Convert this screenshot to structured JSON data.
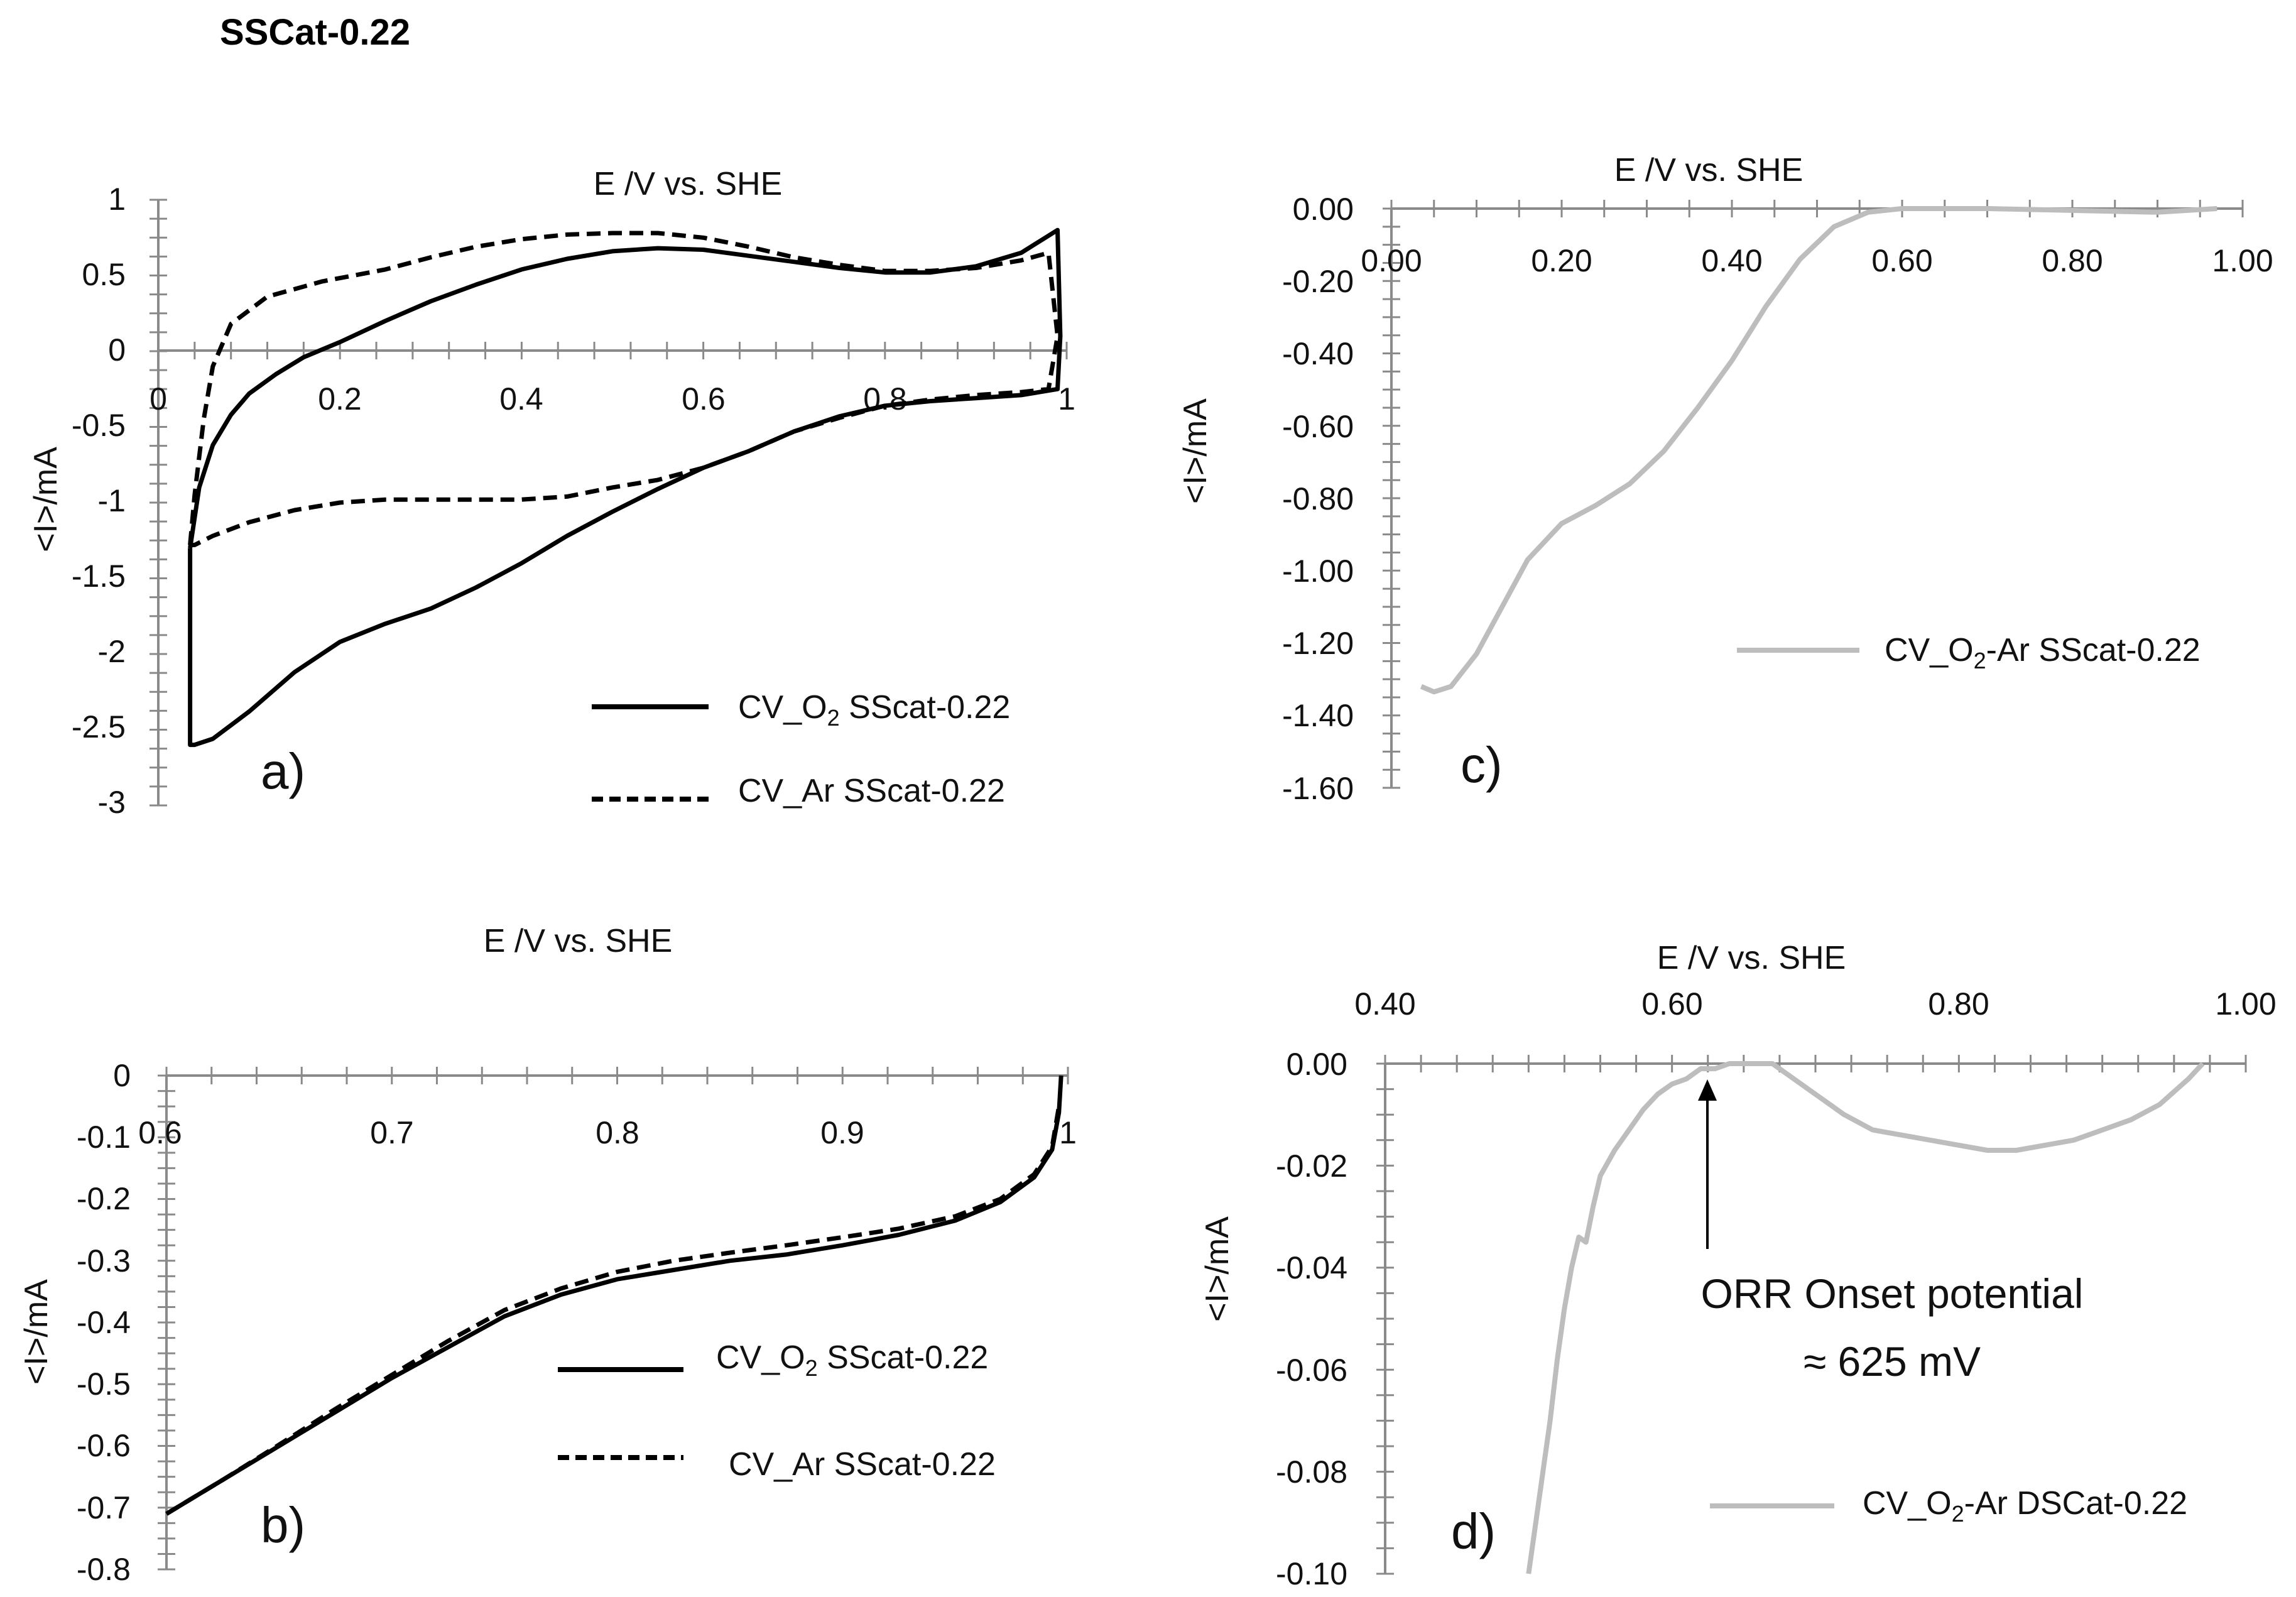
{
  "figure_title": "SSCat-0.22",
  "chart_data": [
    {
      "panel": "a",
      "type": "line",
      "panel_label": "a)",
      "xlabel": "E /V vs. SHE",
      "ylabel": "<I>/mA",
      "xlim": [
        0,
        1
      ],
      "ylim": [
        -3,
        1
      ],
      "x_ticks": [
        0,
        0.2,
        0.4,
        0.6,
        0.8,
        1
      ],
      "x_tick_labels": [
        "0",
        "0.2",
        "0.4",
        "0.6",
        "0.8",
        "1"
      ],
      "y_ticks": [
        1,
        0.5,
        0,
        -0.5,
        -1,
        -1.5,
        -2,
        -2.5,
        -3
      ],
      "y_tick_labels": [
        "1",
        "0.5",
        "0",
        "-0.5",
        "-1",
        "-1.5",
        "-2",
        "-2.5",
        "-3"
      ],
      "series": [
        {
          "name": "CV_O2 SScat-0.22",
          "legend_main": "CV_O",
          "legend_sub": "2",
          "legend_rest": " SScat-0.22",
          "style": "solid",
          "color": "#000000",
          "points": [
            [
              0.035,
              -1.3
            ],
            [
              0.045,
              -0.9
            ],
            [
              0.06,
              -0.62
            ],
            [
              0.08,
              -0.42
            ],
            [
              0.1,
              -0.28
            ],
            [
              0.13,
              -0.15
            ],
            [
              0.16,
              -0.04
            ],
            [
              0.2,
              0.06
            ],
            [
              0.25,
              0.2
            ],
            [
              0.3,
              0.33
            ],
            [
              0.35,
              0.44
            ],
            [
              0.4,
              0.54
            ],
            [
              0.45,
              0.61
            ],
            [
              0.5,
              0.66
            ],
            [
              0.55,
              0.68
            ],
            [
              0.6,
              0.67
            ],
            [
              0.65,
              0.63
            ],
            [
              0.7,
              0.59
            ],
            [
              0.75,
              0.55
            ],
            [
              0.8,
              0.52
            ],
            [
              0.85,
              0.52
            ],
            [
              0.9,
              0.56
            ],
            [
              0.95,
              0.65
            ],
            [
              0.99,
              0.8
            ],
            [
              0.993,
              0.1
            ],
            [
              0.99,
              -0.25
            ],
            [
              0.95,
              -0.29
            ],
            [
              0.9,
              -0.31
            ],
            [
              0.85,
              -0.33
            ],
            [
              0.8,
              -0.36
            ],
            [
              0.75,
              -0.43
            ],
            [
              0.7,
              -0.53
            ],
            [
              0.65,
              -0.66
            ],
            [
              0.6,
              -0.77
            ],
            [
              0.55,
              -0.91
            ],
            [
              0.5,
              -1.06
            ],
            [
              0.45,
              -1.22
            ],
            [
              0.4,
              -1.4
            ],
            [
              0.35,
              -1.56
            ],
            [
              0.3,
              -1.7
            ],
            [
              0.25,
              -1.8
            ],
            [
              0.2,
              -1.92
            ],
            [
              0.15,
              -2.12
            ],
            [
              0.1,
              -2.38
            ],
            [
              0.06,
              -2.56
            ],
            [
              0.04,
              -2.6
            ],
            [
              0.035,
              -2.6
            ],
            [
              0.035,
              -1.3
            ]
          ]
        },
        {
          "name": "CV_Ar SScat-0.22",
          "legend_main": "CV_Ar SScat-0.22",
          "style": "dashed",
          "color": "#000000",
          "points": [
            [
              0.035,
              -1.28
            ],
            [
              0.04,
              -0.95
            ],
            [
              0.05,
              -0.45
            ],
            [
              0.06,
              -0.1
            ],
            [
              0.08,
              0.18
            ],
            [
              0.12,
              0.36
            ],
            [
              0.18,
              0.46
            ],
            [
              0.25,
              0.54
            ],
            [
              0.3,
              0.62
            ],
            [
              0.35,
              0.69
            ],
            [
              0.4,
              0.74
            ],
            [
              0.45,
              0.77
            ],
            [
              0.5,
              0.78
            ],
            [
              0.55,
              0.78
            ],
            [
              0.6,
              0.75
            ],
            [
              0.65,
              0.69
            ],
            [
              0.7,
              0.62
            ],
            [
              0.75,
              0.57
            ],
            [
              0.8,
              0.53
            ],
            [
              0.85,
              0.53
            ],
            [
              0.9,
              0.55
            ],
            [
              0.95,
              0.6
            ],
            [
              0.98,
              0.65
            ],
            [
              0.99,
              0.1
            ],
            [
              0.98,
              -0.25
            ],
            [
              0.95,
              -0.27
            ],
            [
              0.9,
              -0.29
            ],
            [
              0.85,
              -0.32
            ],
            [
              0.8,
              -0.36
            ],
            [
              0.75,
              -0.44
            ],
            [
              0.7,
              -0.53
            ],
            [
              0.65,
              -0.66
            ],
            [
              0.6,
              -0.77
            ],
            [
              0.55,
              -0.85
            ],
            [
              0.5,
              -0.9
            ],
            [
              0.45,
              -0.96
            ],
            [
              0.4,
              -0.98
            ],
            [
              0.35,
              -0.98
            ],
            [
              0.3,
              -0.98
            ],
            [
              0.25,
              -0.98
            ],
            [
              0.2,
              -1.0
            ],
            [
              0.15,
              -1.05
            ],
            [
              0.1,
              -1.13
            ],
            [
              0.06,
              -1.22
            ],
            [
              0.04,
              -1.28
            ],
            [
              0.035,
              -1.28
            ]
          ]
        }
      ]
    },
    {
      "panel": "b",
      "type": "line",
      "panel_label": "b)",
      "xlabel": "E /V vs. SHE",
      "ylabel": "<I>/mA",
      "xlim": [
        0.6,
        1
      ],
      "ylim": [
        -0.8,
        0
      ],
      "x_ticks": [
        0.6,
        0.7,
        0.8,
        0.9,
        1
      ],
      "x_tick_labels": [
        "0.6",
        "0.7",
        "0.8",
        "0.9",
        "1"
      ],
      "y_ticks": [
        0,
        -0.1,
        -0.2,
        -0.3,
        -0.4,
        -0.5,
        -0.6,
        -0.7,
        -0.8
      ],
      "y_tick_labels": [
        "0",
        "-0.1",
        "-0.2",
        "-0.3",
        "-0.4",
        "-0.5",
        "-0.6",
        "-0.7",
        "-0.8"
      ],
      "series": [
        {
          "name": "CV_O2 SScat-0.22",
          "legend_main": "CV_O",
          "legend_sub": "2",
          "legend_rest": " SScat-0.22",
          "style": "solid",
          "color": "#000000",
          "points": [
            [
              0.6,
              -0.71
            ],
            [
              0.625,
              -0.655
            ],
            [
              0.65,
              -0.6
            ],
            [
              0.675,
              -0.545
            ],
            [
              0.7,
              -0.49
            ],
            [
              0.725,
              -0.44
            ],
            [
              0.75,
              -0.39
            ],
            [
              0.775,
              -0.355
            ],
            [
              0.8,
              -0.33
            ],
            [
              0.825,
              -0.315
            ],
            [
              0.85,
              -0.3
            ],
            [
              0.875,
              -0.29
            ],
            [
              0.9,
              -0.275
            ],
            [
              0.925,
              -0.258
            ],
            [
              0.95,
              -0.235
            ],
            [
              0.97,
              -0.205
            ],
            [
              0.985,
              -0.165
            ],
            [
              0.993,
              -0.12
            ],
            [
              0.996,
              -0.06
            ],
            [
              0.997,
              0
            ]
          ]
        },
        {
          "name": "CV_Ar SScat-0.22",
          "legend_main": "CV_Ar SScat-0.22",
          "style": "dashed",
          "color": "#000000",
          "points": [
            [
              0.6,
              -0.71
            ],
            [
              0.625,
              -0.655
            ],
            [
              0.65,
              -0.598
            ],
            [
              0.675,
              -0.54
            ],
            [
              0.7,
              -0.485
            ],
            [
              0.725,
              -0.43
            ],
            [
              0.75,
              -0.38
            ],
            [
              0.775,
              -0.345
            ],
            [
              0.8,
              -0.318
            ],
            [
              0.825,
              -0.3
            ],
            [
              0.85,
              -0.287
            ],
            [
              0.875,
              -0.275
            ],
            [
              0.9,
              -0.262
            ],
            [
              0.925,
              -0.248
            ],
            [
              0.95,
              -0.228
            ],
            [
              0.97,
              -0.2
            ],
            [
              0.985,
              -0.16
            ],
            [
              0.993,
              -0.115
            ],
            [
              0.996,
              -0.05
            ]
          ]
        }
      ]
    },
    {
      "panel": "c",
      "type": "line",
      "panel_label": "c)",
      "xlabel": "E /V vs. SHE",
      "ylabel": "<I>/mA",
      "xlim": [
        0,
        1
      ],
      "ylim": [
        -1.6,
        0
      ],
      "x_ticks": [
        0,
        0.2,
        0.4,
        0.6,
        0.8,
        1
      ],
      "x_tick_labels": [
        "0.00",
        "0.20",
        "0.40",
        "0.60",
        "0.80",
        "1.00"
      ],
      "y_ticks": [
        0,
        -0.2,
        -0.4,
        -0.6,
        -0.8,
        -1.0,
        -1.2,
        -1.4,
        -1.6
      ],
      "y_tick_labels": [
        "0.00",
        "-0.20",
        "-0.40",
        "-0.60",
        "-0.80",
        "-1.00",
        "-1.20",
        "-1.40",
        "-1.60"
      ],
      "series": [
        {
          "name": "CV_O2-Ar SScat-0.22",
          "legend_main": "CV_O",
          "legend_sub": "2",
          "legend_rest": "-Ar SScat-0.22",
          "style": "solid",
          "color": "#bdbdbd",
          "points": [
            [
              0.035,
              -1.32
            ],
            [
              0.05,
              -1.335
            ],
            [
              0.07,
              -1.32
            ],
            [
              0.1,
              -1.23
            ],
            [
              0.13,
              -1.1
            ],
            [
              0.16,
              -0.97
            ],
            [
              0.2,
              -0.87
            ],
            [
              0.24,
              -0.82
            ],
            [
              0.28,
              -0.76
            ],
            [
              0.32,
              -0.67
            ],
            [
              0.36,
              -0.55
            ],
            [
              0.4,
              -0.42
            ],
            [
              0.44,
              -0.27
            ],
            [
              0.48,
              -0.14
            ],
            [
              0.52,
              -0.05
            ],
            [
              0.56,
              -0.01
            ],
            [
              0.6,
              0.0
            ],
            [
              0.7,
              0.0
            ],
            [
              0.8,
              -0.005
            ],
            [
              0.9,
              -0.01
            ],
            [
              0.97,
              0.0
            ]
          ]
        }
      ]
    },
    {
      "panel": "d",
      "type": "line",
      "panel_label": "d)",
      "xlabel": "E /V vs. SHE",
      "ylabel": "<I>/mA",
      "xlim": [
        0.4,
        1
      ],
      "ylim": [
        -0.1,
        0
      ],
      "x_ticks": [
        0.4,
        0.6,
        0.8,
        1
      ],
      "x_tick_labels": [
        "0.40",
        "0.60",
        "0.80",
        "1.00"
      ],
      "y_ticks": [
        0,
        -0.02,
        -0.04,
        -0.06,
        -0.08,
        -0.1
      ],
      "y_tick_labels": [
        "0.00",
        "-0.02",
        "-0.04",
        "-0.06",
        "-0.08",
        "-0.10"
      ],
      "annotation": {
        "line1": "ORR Onset potential",
        "line2": "≈ 625 mV",
        "x": 0.625,
        "y": 0.0
      },
      "series": [
        {
          "name": "CV_O2-Ar DSCat-0.22",
          "legend_main": "CV_O",
          "legend_sub": "2",
          "legend_rest": "-Ar DSCat-0.22",
          "style": "solid",
          "color": "#bdbdbd",
          "points": [
            [
              0.5,
              -0.1
            ],
            [
              0.505,
              -0.09
            ],
            [
              0.51,
              -0.08
            ],
            [
              0.515,
              -0.07
            ],
            [
              0.52,
              -0.058
            ],
            [
              0.525,
              -0.048
            ],
            [
              0.53,
              -0.04
            ],
            [
              0.535,
              -0.034
            ],
            [
              0.54,
              -0.035
            ],
            [
              0.545,
              -0.028
            ],
            [
              0.55,
              -0.022
            ],
            [
              0.56,
              -0.017
            ],
            [
              0.57,
              -0.013
            ],
            [
              0.58,
              -0.009
            ],
            [
              0.59,
              -0.006
            ],
            [
              0.6,
              -0.004
            ],
            [
              0.61,
              -0.003
            ],
            [
              0.62,
              -0.001
            ],
            [
              0.63,
              -0.001
            ],
            [
              0.64,
              0.0
            ],
            [
              0.65,
              0.0
            ],
            [
              0.66,
              0.0
            ],
            [
              0.67,
              0.0
            ],
            [
              0.68,
              -0.002
            ],
            [
              0.7,
              -0.006
            ],
            [
              0.72,
              -0.01
            ],
            [
              0.74,
              -0.013
            ],
            [
              0.76,
              -0.014
            ],
            [
              0.78,
              -0.015
            ],
            [
              0.8,
              -0.016
            ],
            [
              0.82,
              -0.017
            ],
            [
              0.84,
              -0.017
            ],
            [
              0.86,
              -0.016
            ],
            [
              0.88,
              -0.015
            ],
            [
              0.9,
              -0.013
            ],
            [
              0.92,
              -0.011
            ],
            [
              0.94,
              -0.008
            ],
            [
              0.96,
              -0.003
            ],
            [
              0.97,
              0.0
            ]
          ]
        }
      ]
    }
  ]
}
